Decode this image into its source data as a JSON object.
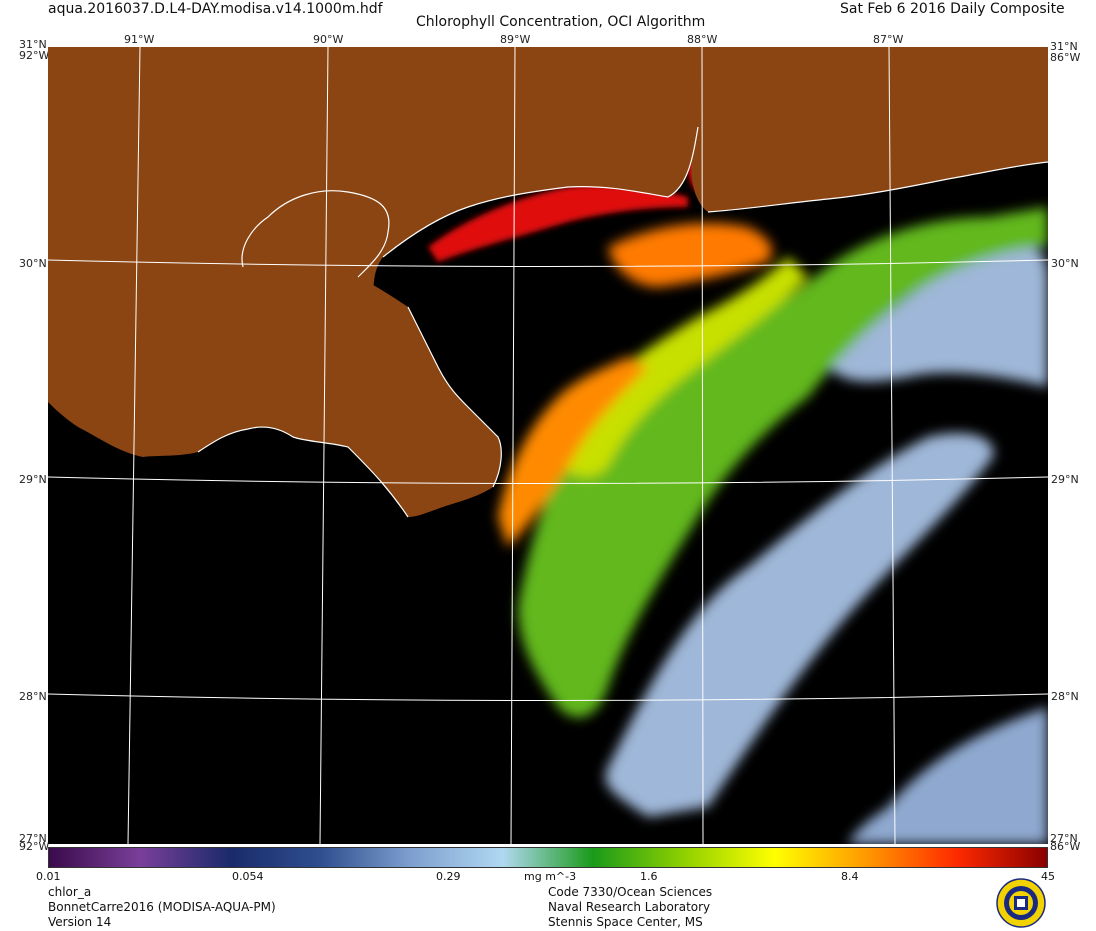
{
  "header": {
    "filename": "aqua.2016037.D.L4-DAY.modisa.v14.1000m.hdf",
    "title": "Chlorophyll Concentration, OCI Algorithm",
    "date": "Sat Feb  6 2016 Daily Composite"
  },
  "map": {
    "lon_labels": [
      "91°W",
      "90°W",
      "89°W",
      "88°W",
      "87°W"
    ],
    "lat_labels": [
      "30°N",
      "29°N",
      "28°N"
    ],
    "corner_top_lat": "31°N",
    "corner_right_lon": "86°W",
    "corner_bottom_lat": "27°N",
    "corner_left_lon": "92°W",
    "colors": {
      "land": "#8B4513",
      "no_data": "#000000",
      "coastline": "#ffffff",
      "grid": "#ffffff",
      "low_chl": "#9fb7d8",
      "mid_chl": "#62b81e",
      "high_chl": "#ff6a00",
      "very_high_chl": "#e01010"
    }
  },
  "colorbar": {
    "tick_labels": [
      "0.01",
      "0.054",
      "0.29",
      "1.6",
      "8.4",
      "45"
    ],
    "units": "mg m^-3",
    "stops": [
      "#3a0a4a",
      "#7a3f9a",
      "#1a2a6a",
      "#2f4f8f",
      "#7fa0d0",
      "#b0d8f0",
      "#1a9a1a",
      "#8fd000",
      "#ffff00",
      "#ff9a00",
      "#ff2a00",
      "#8a0000"
    ]
  },
  "footer": {
    "left": [
      "chlor_a",
      "BonnetCarre2016 (MODISA-AQUA-PM)",
      "Version 14"
    ],
    "center": [
      "Code 7330/Ocean Sciences",
      "Naval Research Laboratory",
      "Stennis Space Center, MS"
    ]
  }
}
